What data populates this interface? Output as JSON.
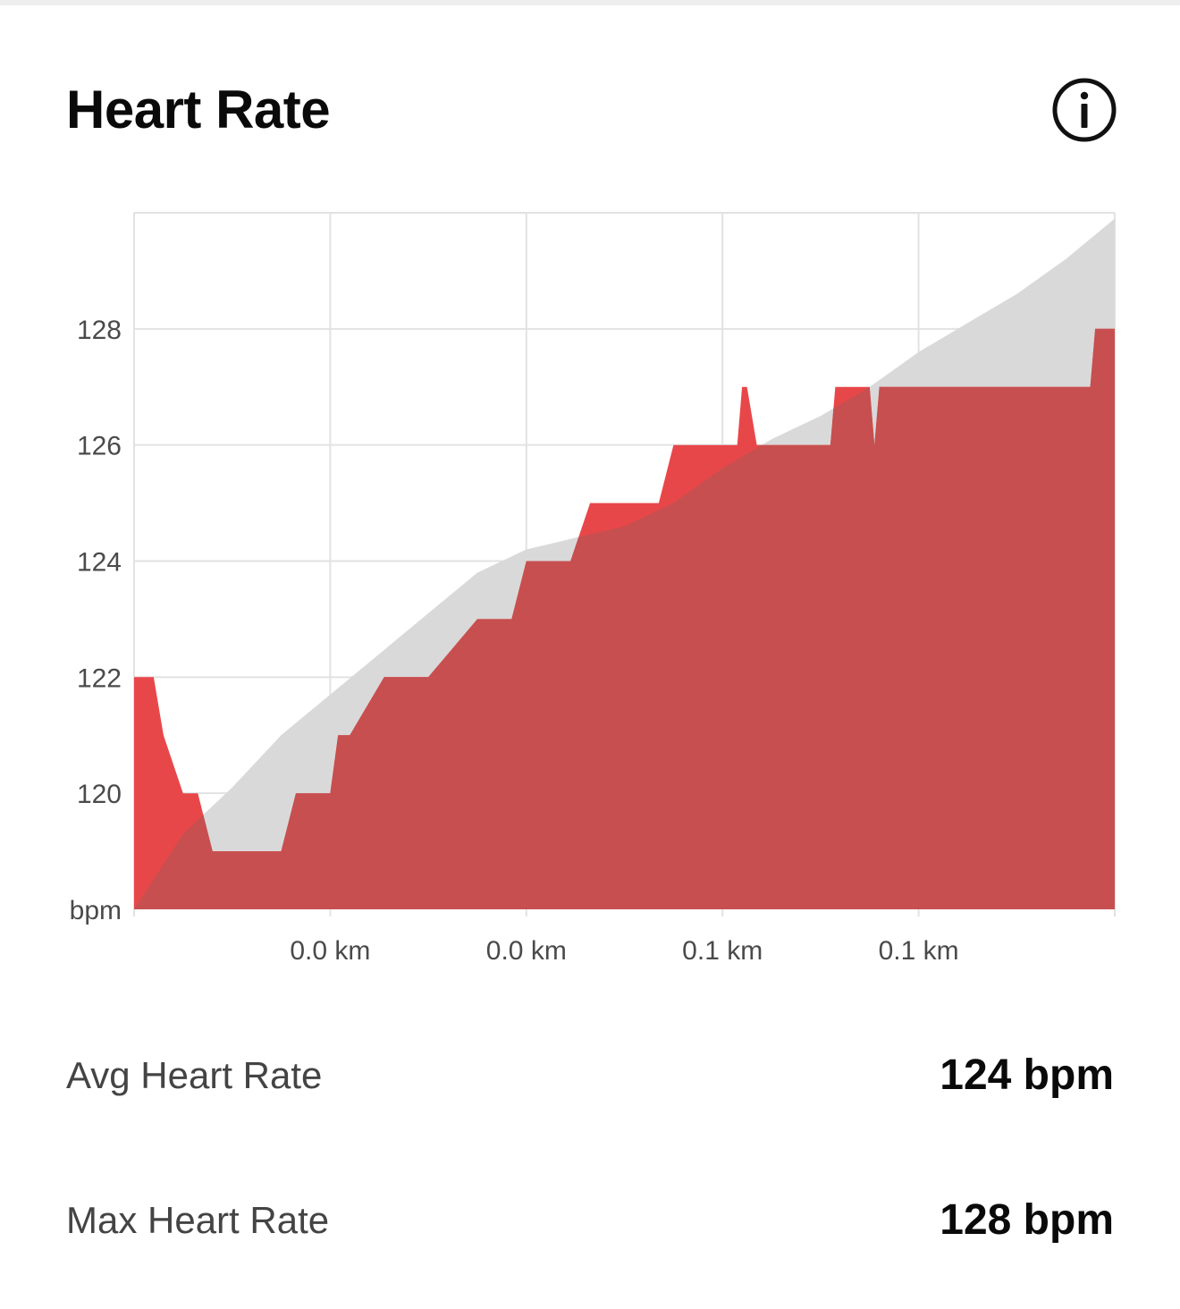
{
  "header": {
    "title": "Heart Rate",
    "info_icon": "info-circle-icon"
  },
  "colors": {
    "heart_rate_fill": "#c74f4f",
    "heart_rate_highlight": "#e8474a",
    "elevation_fill": "#d9d9d9",
    "grid": "#e2e2e2"
  },
  "chart_data": {
    "type": "area",
    "ylabel": "bpm",
    "ylim": [
      118,
      130
    ],
    "yticks": [
      "128",
      "126",
      "124",
      "122",
      "120"
    ],
    "ytick_values": [
      128,
      126,
      124,
      122,
      120
    ],
    "xticks": [
      "0.0 km",
      "0.0 km",
      "0.1 km",
      "0.1 km"
    ],
    "grid": true,
    "series": [
      {
        "role": "heart-rate",
        "x": [
          0,
          0.02,
          0.03,
          0.05,
          0.065,
          0.08,
          0.095,
          0.15,
          0.165,
          0.2,
          0.208,
          0.22,
          0.255,
          0.265,
          0.3,
          0.35,
          0.385,
          0.4,
          0.415,
          0.43,
          0.445,
          0.465,
          0.5,
          0.535,
          0.55,
          0.565,
          0.58,
          0.595,
          0.615,
          0.62,
          0.625,
          0.635,
          0.64,
          0.65,
          0.71,
          0.715,
          0.72,
          0.735,
          0.75,
          0.755,
          0.76,
          0.775,
          0.78,
          0.79,
          0.795,
          0.8,
          0.81,
          0.825,
          0.83,
          0.835,
          0.84,
          0.85,
          0.855,
          0.865,
          0.87,
          0.88,
          0.885,
          0.915,
          0.925,
          0.95,
          0.975,
          0.98,
          0.985,
          1
        ],
        "values": [
          122,
          122,
          121,
          120,
          120,
          119,
          119,
          119,
          120,
          120,
          121,
          121,
          122,
          122,
          122,
          123,
          123,
          124,
          124,
          124,
          124,
          125,
          125,
          125,
          126,
          126,
          126,
          126,
          126,
          127,
          127,
          126,
          126,
          126,
          126,
          127,
          127,
          127,
          127,
          126,
          127,
          127,
          127,
          127,
          127,
          127,
          127,
          127,
          127,
          127,
          127,
          127,
          127,
          127,
          127,
          127,
          127,
          127,
          127,
          127,
          127,
          128,
          128,
          128
        ]
      },
      {
        "role": "elevation-profile",
        "x": [
          0,
          0.05,
          0.1,
          0.15,
          0.2,
          0.25,
          0.3,
          0.35,
          0.4,
          0.45,
          0.5,
          0.55,
          0.6,
          0.65,
          0.7,
          0.75,
          0.8,
          0.85,
          0.9,
          0.95,
          1
        ],
        "values": [
          118,
          119.3,
          120.1,
          121.0,
          121.7,
          122.4,
          123.1,
          123.8,
          124.2,
          124.4,
          124.6,
          125.0,
          125.6,
          126.1,
          126.5,
          127.0,
          127.6,
          128.1,
          128.6,
          129.2,
          129.9
        ]
      }
    ]
  },
  "stats": [
    {
      "label": "Avg Heart Rate",
      "value": "124 bpm"
    },
    {
      "label": "Max Heart Rate",
      "value": "128 bpm"
    }
  ]
}
